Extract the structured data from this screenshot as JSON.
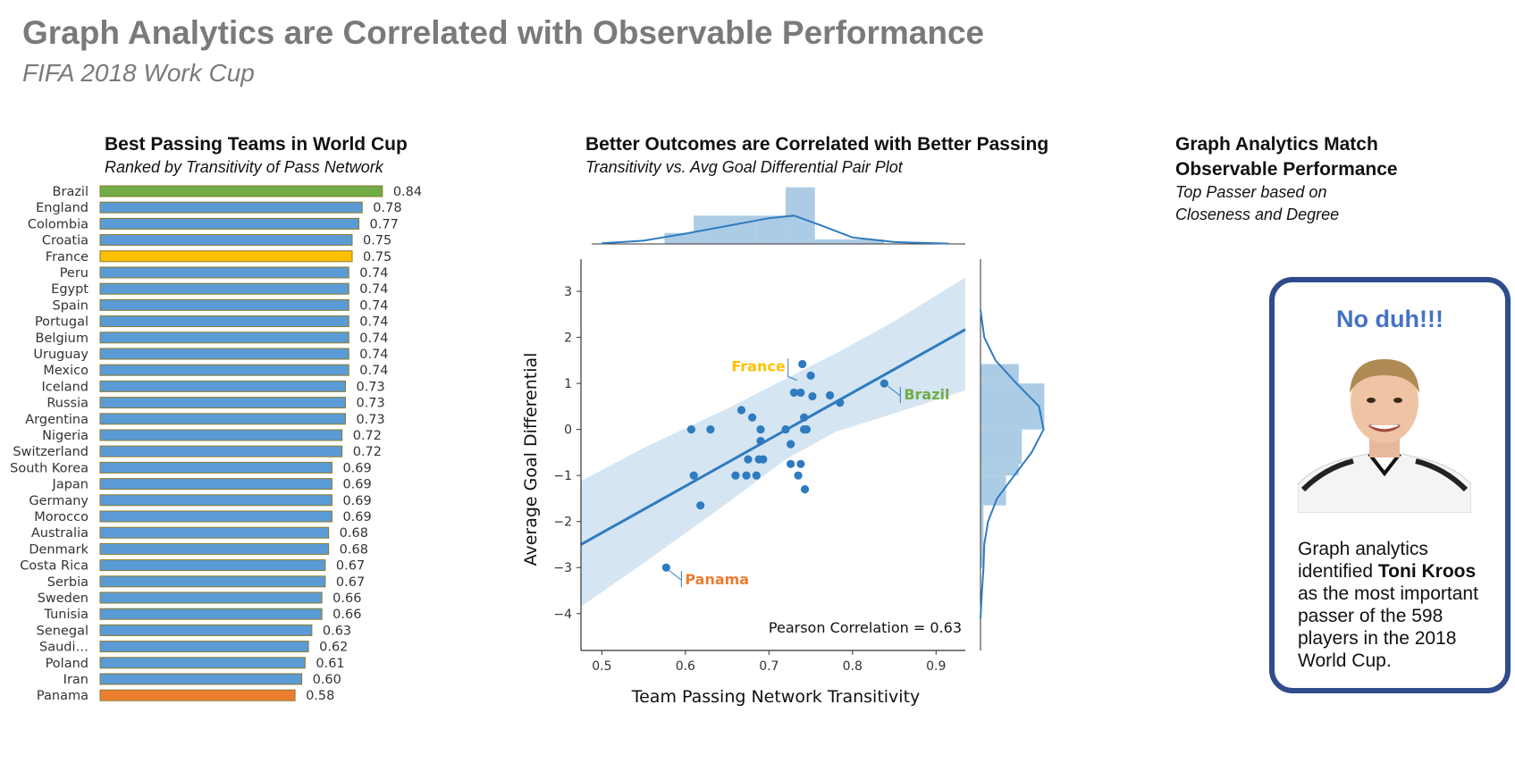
{
  "header": {
    "title": "Graph Analytics are Correlated with Observable Performance",
    "subtitle": "FIFA 2018 Work Cup"
  },
  "left_panel": {
    "title": "Best Passing Teams in World Cup",
    "subtitle": "Ranked by Transitivity of Pass Network"
  },
  "middle_panel": {
    "title": "Better Outcomes are Correlated with Better Passing",
    "subtitle": "Transitivity vs. Avg Goal Differential Pair Plot"
  },
  "right_panel": {
    "title_line1": "Graph Analytics Match",
    "title_line2": "Observable Performance",
    "subtitle_line1": "Top Passer based on",
    "subtitle_line2": "Closeness and Degree",
    "card": {
      "headline": "No duh!!!",
      "text_before": "Graph analytics identified ",
      "highlight": "Toni Kroos",
      "text_after": " as the most important passer of the 598 players in the 2018 World Cup."
    }
  },
  "colors": {
    "bar_default": "#5b9bd5",
    "bar_top": "#70ad47",
    "bar_france": "#ffc000",
    "bar_bottom": "#ed7d31",
    "bar_edge": "#8a7a2a",
    "scatter": "#2f7bbf",
    "label_france": "#ffc000",
    "label_brazil": "#70ad47",
    "label_panama": "#ed7d31"
  },
  "chart_data": [
    {
      "type": "bar",
      "orientation": "horizontal",
      "title": "Best Passing Teams in World Cup",
      "subtitle": "Ranked by Transitivity of Pass Network",
      "xlim": [
        0,
        1
      ],
      "categories": [
        "Brazil",
        "England",
        "Colombia",
        "Croatia",
        "France",
        "Peru",
        "Egypt",
        "Spain",
        "Portugal",
        "Belgium",
        "Uruguay",
        "Mexico",
        "Iceland",
        "Russia",
        "Argentina",
        "Nigeria",
        "Switzerland",
        "South Korea",
        "Japan",
        "Germany",
        "Morocco",
        "Australia",
        "Denmark",
        "Costa Rica",
        "Serbia",
        "Sweden",
        "Tunisia",
        "Senegal",
        "Saudi…",
        "Poland",
        "Iran",
        "Panama"
      ],
      "values": [
        0.84,
        0.78,
        0.77,
        0.75,
        0.75,
        0.74,
        0.74,
        0.74,
        0.74,
        0.74,
        0.74,
        0.74,
        0.73,
        0.73,
        0.73,
        0.72,
        0.72,
        0.69,
        0.69,
        0.69,
        0.69,
        0.68,
        0.68,
        0.67,
        0.67,
        0.66,
        0.66,
        0.63,
        0.62,
        0.61,
        0.6,
        0.58
      ],
      "value_labels": [
        "0.84",
        "0.78",
        "0.77",
        "0.75",
        "0.75",
        "0.74",
        "0.74",
        "0.74",
        "0.74",
        "0.74",
        "0.74",
        "0.74",
        "0.73",
        "0.73",
        "0.73",
        "0.72",
        "0.72",
        "0.69",
        "0.69",
        "0.69",
        "0.69",
        "0.68",
        "0.68",
        "0.67",
        "0.67",
        "0.66",
        "0.66",
        "0.63",
        "0.62",
        "0.61",
        "0.60",
        "0.58"
      ]
    },
    {
      "type": "scatter",
      "title": "Better Outcomes are Correlated with Better Passing",
      "subtitle": "Transitivity vs. Avg Goal Differential Pair Plot",
      "xlabel": "Team Passing Network Transitivity",
      "ylabel": "Average Goal Differential",
      "xlim": [
        0.475,
        0.935
      ],
      "ylim": [
        -4.8,
        3.7
      ],
      "xticks": [
        "0.5",
        "0.6",
        "0.7",
        "0.8",
        "0.9"
      ],
      "xtick_values": [
        0.5,
        0.6,
        0.7,
        0.8,
        0.9
      ],
      "yticks": [
        "3",
        "2",
        "1",
        "0",
        "−1",
        "−2",
        "−3",
        "−4"
      ],
      "ytick_values": [
        3,
        2,
        1,
        0,
        -1,
        -2,
        -3,
        -4
      ],
      "annotation": "Pearson Correlation = 0.63",
      "regression": {
        "x": [
          0.475,
          0.935
        ],
        "y": [
          -2.5,
          2.17
        ]
      },
      "confidence_band": {
        "x": [
          0.475,
          0.55,
          0.65,
          0.72,
          0.78,
          0.85,
          0.935
        ],
        "upper": [
          -1.12,
          -0.4,
          0.45,
          1.1,
          1.65,
          2.35,
          3.3
        ],
        "lower": [
          -3.85,
          -2.9,
          -1.6,
          -0.65,
          -0.05,
          0.35,
          0.85
        ]
      },
      "points": [
        {
          "x": 0.838,
          "y": 1.0
        },
        {
          "x": 0.75,
          "y": 1.17
        },
        {
          "x": 0.74,
          "y": 1.42
        },
        {
          "x": 0.73,
          "y": 0.8
        },
        {
          "x": 0.738,
          "y": 0.8
        },
        {
          "x": 0.752,
          "y": 0.72
        },
        {
          "x": 0.773,
          "y": 0.74
        },
        {
          "x": 0.785,
          "y": 0.58
        },
        {
          "x": 0.667,
          "y": 0.42
        },
        {
          "x": 0.68,
          "y": 0.26
        },
        {
          "x": 0.742,
          "y": 0.26
        },
        {
          "x": 0.607,
          "y": 0.0
        },
        {
          "x": 0.63,
          "y": 0.0
        },
        {
          "x": 0.69,
          "y": 0.0
        },
        {
          "x": 0.72,
          "y": 0.0
        },
        {
          "x": 0.742,
          "y": 0.0
        },
        {
          "x": 0.745,
          "y": 0.0
        },
        {
          "x": 0.69,
          "y": -0.25
        },
        {
          "x": 0.726,
          "y": -0.32
        },
        {
          "x": 0.675,
          "y": -0.65
        },
        {
          "x": 0.688,
          "y": -0.65
        },
        {
          "x": 0.693,
          "y": -0.65
        },
        {
          "x": 0.726,
          "y": -0.75
        },
        {
          "x": 0.738,
          "y": -0.75
        },
        {
          "x": 0.61,
          "y": -1.0
        },
        {
          "x": 0.66,
          "y": -1.0
        },
        {
          "x": 0.673,
          "y": -1.0
        },
        {
          "x": 0.685,
          "y": -1.0
        },
        {
          "x": 0.735,
          "y": -1.0
        },
        {
          "x": 0.743,
          "y": -1.3
        },
        {
          "x": 0.618,
          "y": -1.65
        },
        {
          "x": 0.577,
          "y": -3.0
        }
      ],
      "labels": [
        {
          "text": "France",
          "x": 0.74,
          "y": 1.42
        },
        {
          "text": "Brazil",
          "x": 0.838,
          "y": 1.0
        },
        {
          "text": "Panama",
          "x": 0.577,
          "y": -3.0
        }
      ],
      "marginal_x": {
        "bins": [
          [
            0.575,
            0.61,
            0.17
          ],
          [
            0.61,
            0.685,
            0.44
          ],
          [
            0.685,
            0.72,
            0.44
          ],
          [
            0.72,
            0.755,
            0.88
          ],
          [
            0.755,
            0.79,
            0.07
          ],
          [
            0.79,
            0.838,
            0.07
          ]
        ],
        "kde_x": [
          0.5,
          0.55,
          0.6,
          0.65,
          0.7,
          0.73,
          0.76,
          0.8,
          0.85,
          0.9,
          0.915
        ],
        "kde_y": [
          0.01,
          0.05,
          0.16,
          0.28,
          0.4,
          0.44,
          0.3,
          0.1,
          0.03,
          0.01,
          0.005
        ]
      },
      "marginal_y": {
        "bins": [
          [
            1.0,
            1.42,
            0.51
          ],
          [
            0.0,
            1.0,
            0.85
          ],
          [
            -0.75,
            0.0,
            0.55
          ],
          [
            -1.0,
            -0.75,
            0.51
          ],
          [
            -1.65,
            -1.0,
            0.34
          ],
          [
            -3.0,
            -1.65,
            0.04
          ]
        ],
        "kde_y": [
          2.6,
          2.0,
          1.5,
          1.0,
          0.5,
          0.0,
          -0.5,
          -1.0,
          -1.5,
          -2.0,
          -2.5,
          -3.0,
          -3.5,
          -4.1
        ],
        "kde_x": [
          0.0,
          0.05,
          0.2,
          0.48,
          0.78,
          0.84,
          0.68,
          0.45,
          0.22,
          0.1,
          0.05,
          0.04,
          0.02,
          0.0
        ]
      }
    }
  ]
}
